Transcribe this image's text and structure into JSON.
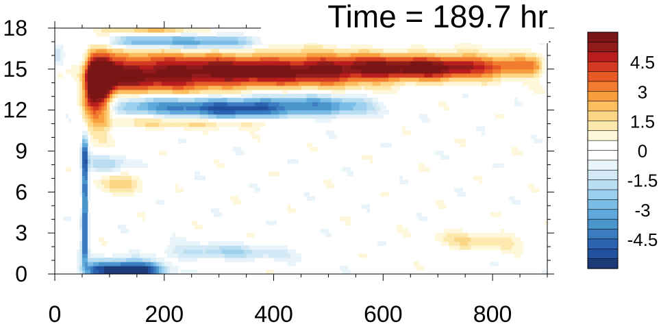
{
  "chart_data": {
    "type": "heatmap",
    "title": "Time = 189.7 hr",
    "xlabel": "",
    "ylabel": "",
    "xlim": [
      0,
      900
    ],
    "ylim": [
      0,
      18
    ],
    "x_ticks": [
      {
        "value": 0,
        "label": "0"
      },
      {
        "value": 200,
        "label": "200"
      },
      {
        "value": 400,
        "label": "400"
      },
      {
        "value": 600,
        "label": "600"
      },
      {
        "value": 800,
        "label": "800"
      }
    ],
    "y_ticks": [
      {
        "value": 0,
        "label": "0"
      },
      {
        "value": 3,
        "label": "3"
      },
      {
        "value": 6,
        "label": "6"
      },
      {
        "value": 9,
        "label": "9"
      },
      {
        "value": 12,
        "label": "12"
      },
      {
        "value": 15,
        "label": "15"
      },
      {
        "value": 18,
        "label": "18"
      }
    ],
    "colorbar": {
      "range": [
        -6,
        6
      ],
      "levels": [
        -5.5,
        -5,
        -4.5,
        -4,
        -3.5,
        -3,
        -2.5,
        -2,
        -1.5,
        -1,
        -0.5,
        0,
        0.5,
        1,
        1.5,
        2,
        2.5,
        3,
        3.5,
        4,
        4.5,
        5,
        5.5
      ],
      "colors": [
        "#1d3a78",
        "#23509e",
        "#2c63b0",
        "#3b7cc0",
        "#4b95cd",
        "#5fa8da",
        "#7cbde5",
        "#9dd0ee",
        "#b9ddf1",
        "#d3e9f5",
        "#e9f4fa",
        "#ffffff",
        "#ffffff",
        "#fff7da",
        "#fde8ad",
        "#fcd585",
        "#fbbd5e",
        "#f79e3e",
        "#f27c2f",
        "#e65a26",
        "#d43a21",
        "#b81c1c",
        "#911a1a",
        "#7a1515"
      ],
      "labels": [
        {
          "value": 4.5,
          "label": "4.5"
        },
        {
          "value": 3,
          "label": "3"
        },
        {
          "value": 1.5,
          "label": "1.5"
        },
        {
          "value": 0,
          "label": "0"
        },
        {
          "value": -1.5,
          "label": "-1.5"
        },
        {
          "value": -3,
          "label": "-3"
        },
        {
          "value": -4.5,
          "label": "-4.5"
        }
      ]
    },
    "features": [
      {
        "desc": "strong positive band",
        "x0": 60,
        "x1": 880,
        "y": 15.2,
        "width": 1.9,
        "amplitude": 6
      },
      {
        "desc": "negative band below jet",
        "x0": 100,
        "x1": 590,
        "y": 12.3,
        "width": 1.1,
        "amplitude": -3.5
      },
      {
        "desc": "negative band above jet",
        "x0": 80,
        "x1": 380,
        "y": 17.0,
        "width": 0.6,
        "amplitude": -3
      },
      {
        "desc": "strong negative near surface",
        "x0": 60,
        "x1": 200,
        "y": 0.4,
        "width": 0.5,
        "amplitude": -6
      },
      {
        "desc": "negative vertical stripe",
        "x": 55,
        "y0": 1,
        "y1": 10,
        "amplitude": -5
      },
      {
        "desc": "weak positive band",
        "x0": 100,
        "x1": 420,
        "y": 11.1,
        "width": 0.4,
        "amplitude": 1.5
      }
    ]
  }
}
